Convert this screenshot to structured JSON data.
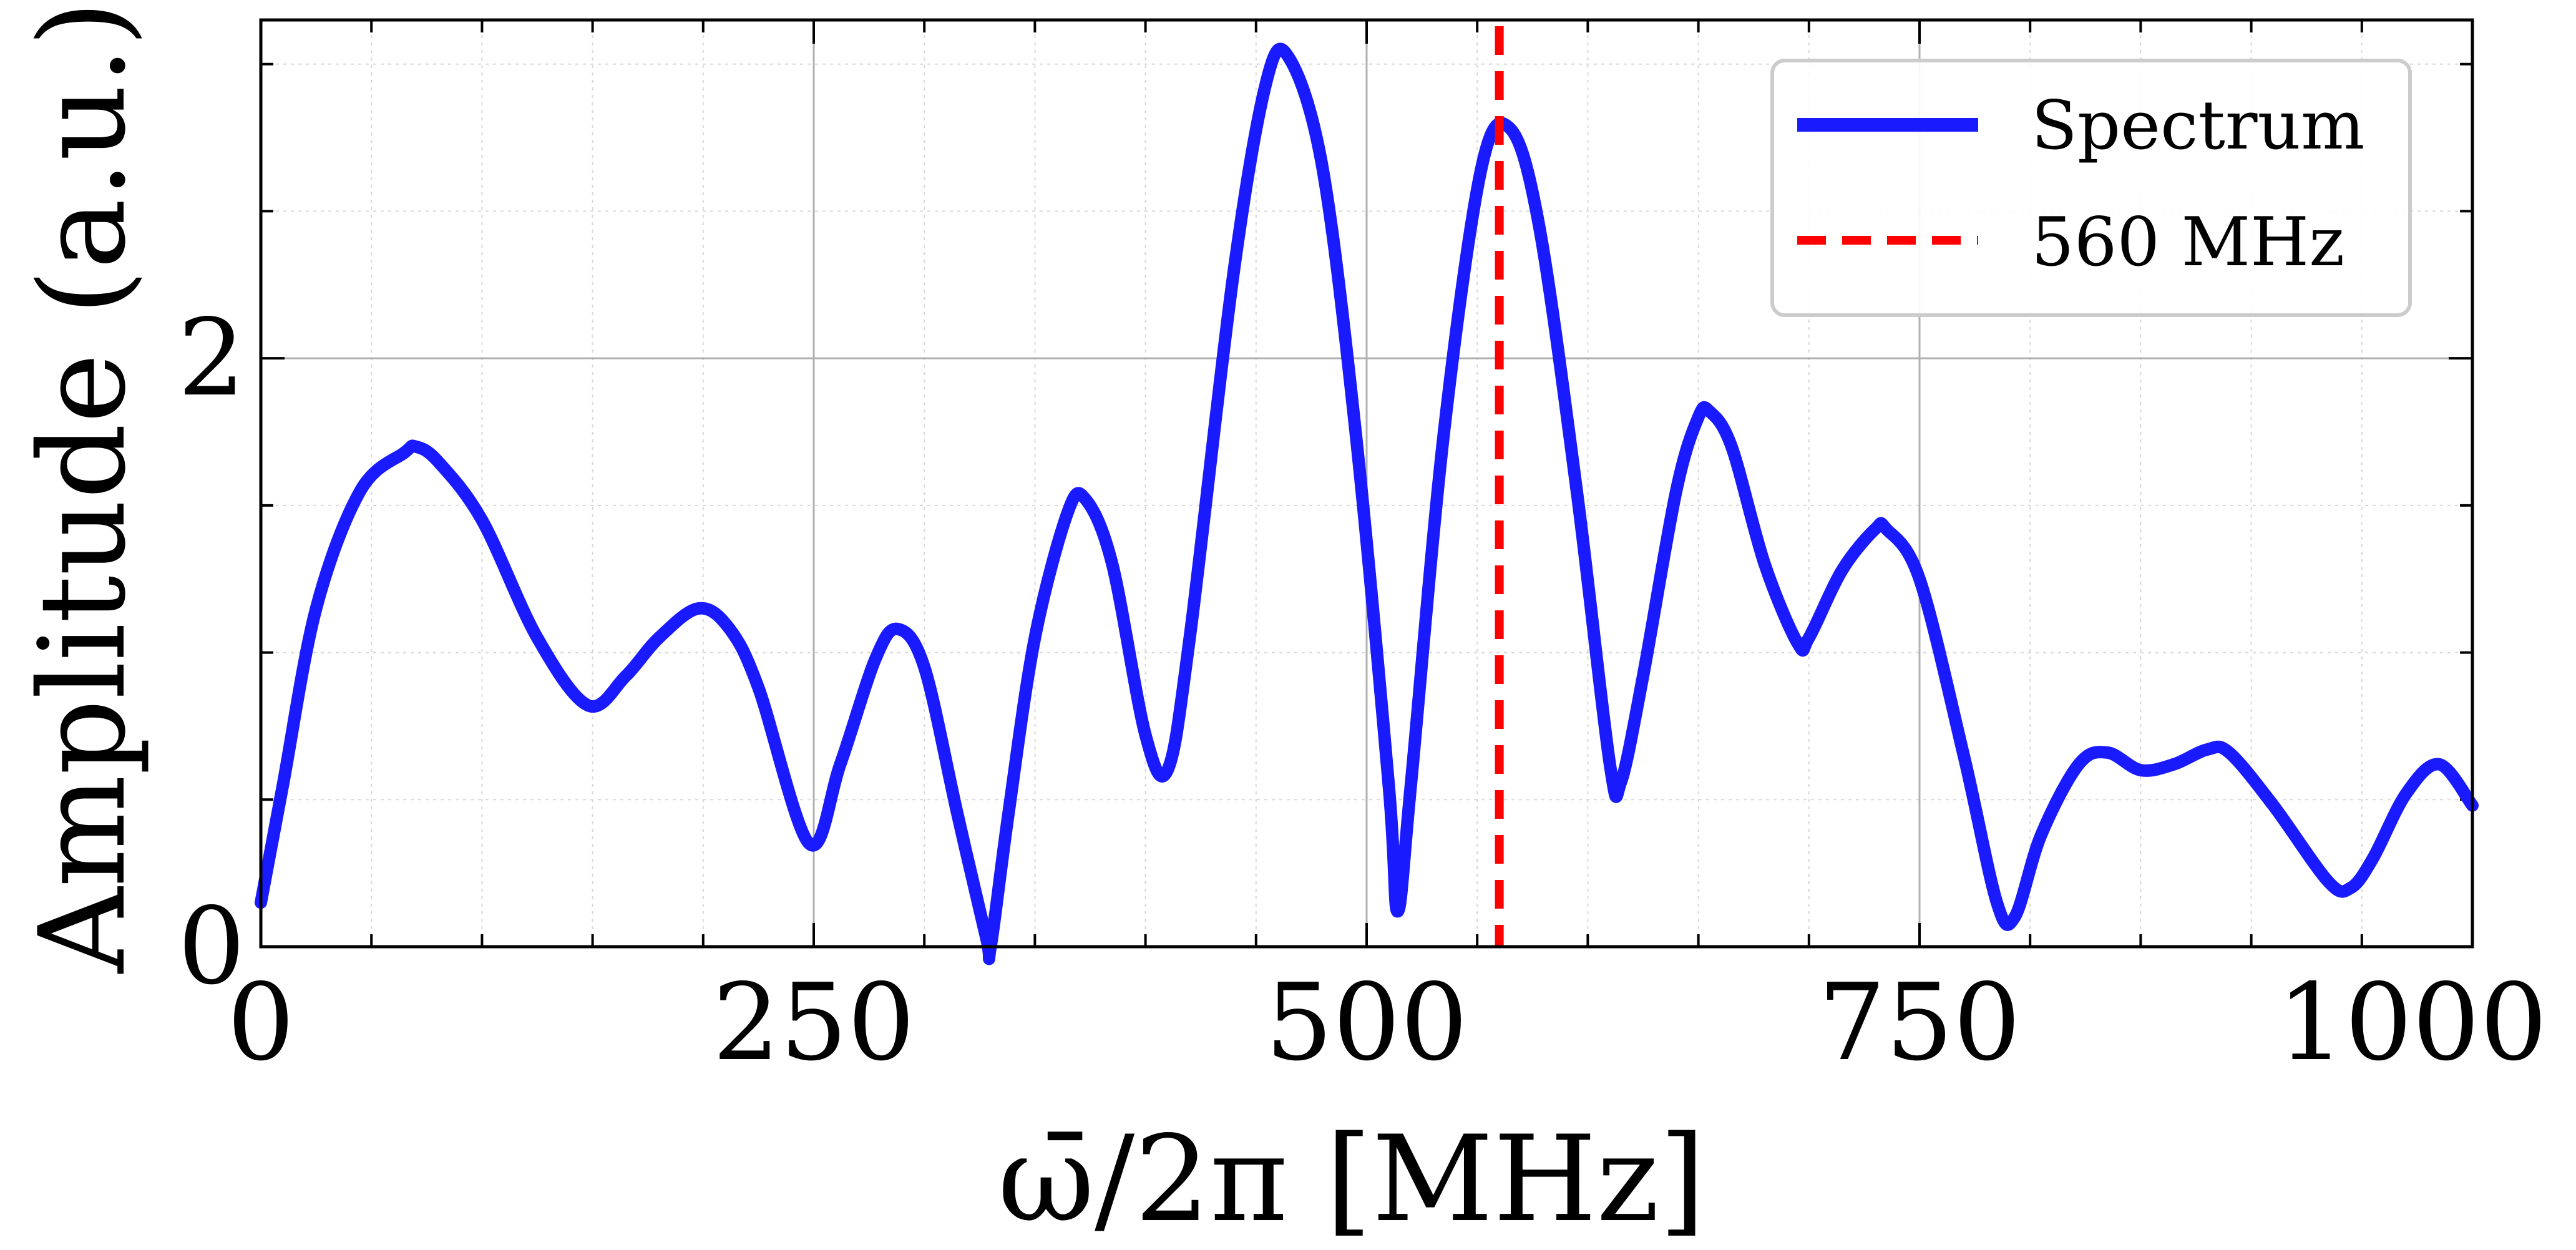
{
  "chart_data": {
    "type": "line",
    "title": "",
    "xlabel": "ω̄/2π [MHz]",
    "ylabel": "Amplitude (a.u.)",
    "xlim": [
      0,
      1000
    ],
    "ylim": [
      0,
      3.15
    ],
    "xticks": [
      0,
      250,
      500,
      750,
      1000
    ],
    "xtick_labels": [
      "0",
      "250",
      "500",
      "750",
      "1000"
    ],
    "yticks": [
      0,
      2
    ],
    "ytick_labels": [
      "0",
      "2"
    ],
    "x_minor_step": 50,
    "y_minor_step": 0.5,
    "grid": true,
    "legend_position": "top-right",
    "series": [
      {
        "name": "Spectrum",
        "color": "#1a1aff",
        "style": "solid",
        "x": [
          0,
          10,
          25,
          45,
          65,
          70,
          80,
          100,
          125,
          148,
          165,
          180,
          198,
          212,
          225,
          248,
          262,
          278,
          288,
          300,
          315,
          328,
          330,
          338,
          350,
          365,
          373,
          385,
          400,
          410,
          420,
          440,
          455,
          465,
          480,
          495,
          510,
          514,
          520,
          535,
          552,
          565,
          578,
          595,
          610,
          615,
          625,
          640,
          650,
          655,
          665,
          680,
          695,
          700,
          715,
          730,
          735,
          750,
          770,
          785,
          793,
          805,
          822,
          835,
          850,
          865,
          880,
          890,
          910,
          935,
          945,
          955,
          970,
          985,
          1000
        ],
        "values": [
          0.15,
          0.55,
          1.15,
          1.55,
          1.68,
          1.7,
          1.65,
          1.45,
          1.05,
          0.82,
          0.92,
          1.05,
          1.15,
          1.08,
          0.88,
          0.35,
          0.62,
          0.98,
          1.08,
          0.95,
          0.45,
          0.03,
          0.0,
          0.45,
          1.05,
          1.48,
          1.52,
          1.3,
          0.72,
          0.6,
          1.05,
          2.3,
          2.95,
          3.02,
          2.65,
          1.75,
          0.55,
          0.12,
          0.55,
          1.75,
          2.65,
          2.78,
          2.45,
          1.55,
          0.62,
          0.56,
          0.92,
          1.55,
          1.8,
          1.82,
          1.7,
          1.3,
          1.03,
          1.05,
          1.28,
          1.42,
          1.42,
          1.25,
          0.65,
          0.15,
          0.1,
          0.38,
          0.62,
          0.66,
          0.6,
          0.62,
          0.67,
          0.66,
          0.48,
          0.22,
          0.2,
          0.3,
          0.52,
          0.62,
          0.48
        ]
      },
      {
        "name": "560 MHz",
        "color": "#ff0000",
        "style": "dashed",
        "x_value": 560
      }
    ]
  }
}
